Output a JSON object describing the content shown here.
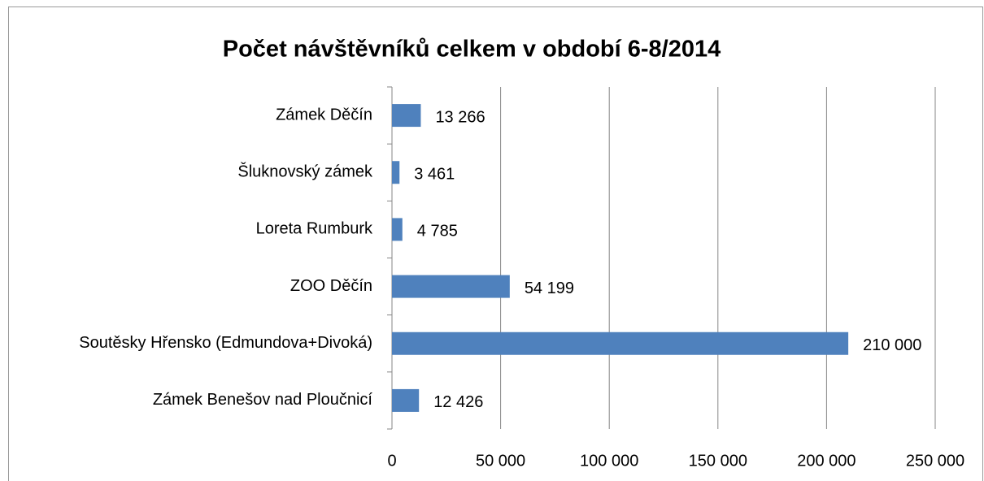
{
  "chart_data": {
    "type": "bar",
    "orientation": "horizontal",
    "title": "Počet návštěvníků celkem v období 6-8/2014",
    "categories": [
      "Zámek Děčín",
      "Šluknovský zámek",
      "Loreta Rumburk",
      "ZOO Děčín",
      "Soutěsky Hřensko (Edmundova+Divoká)",
      "Zámek Benešov nad Ploučnicí"
    ],
    "values": [
      13266,
      3461,
      4785,
      54199,
      210000,
      12426
    ],
    "value_labels": [
      "13 266",
      "3 461",
      "4 785",
      "54 199",
      "210 000",
      "12 426"
    ],
    "color": "#4f81bd",
    "xlim": [
      0,
      250000
    ],
    "xticks": [
      0,
      {
        "value": 50000,
        "label": "50 000"
      },
      {
        "value": 100000,
        "label": "100 000"
      },
      {
        "value": 150000,
        "label": "150 000"
      },
      {
        "value": 200000,
        "label": "200 000"
      },
      {
        "value": 250000,
        "label": "250 000"
      }
    ],
    "grid": true
  }
}
